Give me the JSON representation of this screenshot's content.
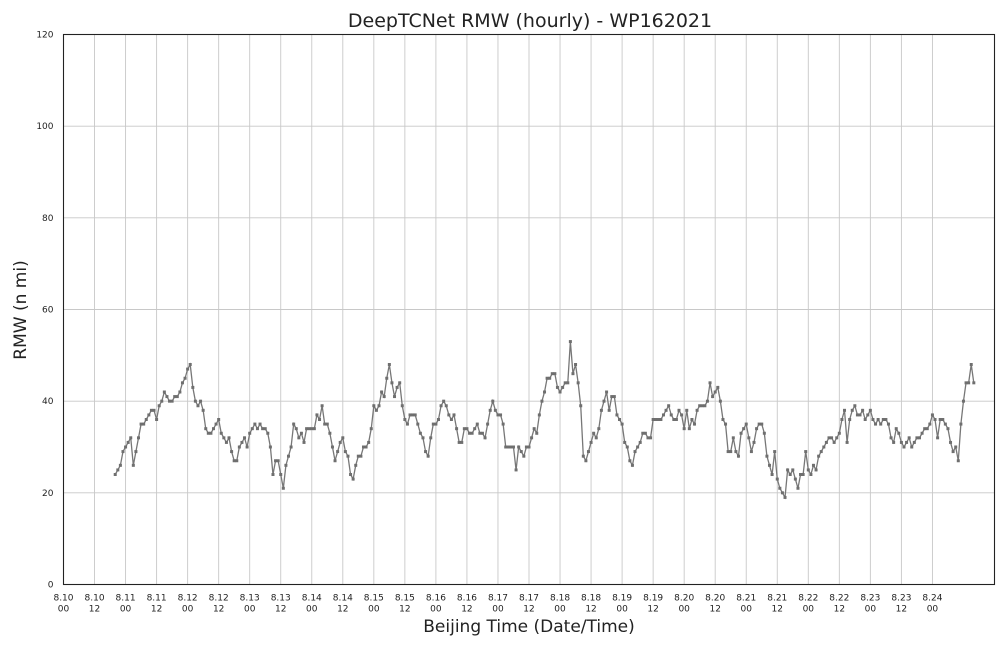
{
  "chart_data": {
    "type": "line",
    "title": "DeepTCNet RMW (hourly) - WP162021",
    "xlabel": "Beijing Time (Date/Time)",
    "ylabel": "RMW (n mi)",
    "ylim": [
      0,
      120
    ],
    "yticks": [
      0,
      20,
      40,
      60,
      80,
      100,
      120
    ],
    "grid": true,
    "xlim_hours": [
      0,
      360
    ],
    "xtick_labels": [
      [
        "8.10",
        "00"
      ],
      [
        "8.10",
        "12"
      ],
      [
        "8.11",
        "00"
      ],
      [
        "8.11",
        "12"
      ],
      [
        "8.12",
        "00"
      ],
      [
        "8.12",
        "12"
      ],
      [
        "8.13",
        "00"
      ],
      [
        "8.13",
        "12"
      ],
      [
        "8.14",
        "00"
      ],
      [
        "8.14",
        "12"
      ],
      [
        "8.15",
        "00"
      ],
      [
        "8.15",
        "12"
      ],
      [
        "8.16",
        "00"
      ],
      [
        "8.16",
        "12"
      ],
      [
        "8.17",
        "00"
      ],
      [
        "8.17",
        "12"
      ],
      [
        "8.18",
        "00"
      ],
      [
        "8.18",
        "12"
      ],
      [
        "8.19",
        "00"
      ],
      [
        "8.19",
        "12"
      ],
      [
        "8.20",
        "00"
      ],
      [
        "8.20",
        "12"
      ],
      [
        "8.21",
        "00"
      ],
      [
        "8.21",
        "12"
      ],
      [
        "8.22",
        "00"
      ],
      [
        "8.22",
        "12"
      ],
      [
        "8.23",
        "00"
      ],
      [
        "8.23",
        "12"
      ],
      [
        "8.24",
        "00"
      ]
    ],
    "x_start_hour": 20,
    "x_step_hour": 1,
    "values": [
      24,
      25,
      26,
      29,
      30,
      31,
      32,
      26,
      29,
      32,
      35,
      35,
      36,
      37,
      38,
      38,
      36,
      39,
      40,
      42,
      41,
      40,
      40,
      41,
      41,
      42,
      44,
      45,
      47,
      48,
      43,
      40,
      39,
      40,
      38,
      34,
      33,
      33,
      34,
      35,
      36,
      33,
      32,
      31,
      32,
      29,
      27,
      27,
      30,
      31,
      32,
      30,
      33,
      34,
      35,
      34,
      35,
      34,
      34,
      33,
      30,
      24,
      27,
      27,
      24,
      21,
      26,
      28,
      30,
      35,
      34,
      32,
      33,
      31,
      34,
      34,
      34,
      34,
      37,
      36,
      39,
      35,
      35,
      33,
      30,
      27,
      29,
      31,
      32,
      29,
      28,
      24,
      23,
      26,
      28,
      28,
      30,
      30,
      31,
      34,
      39,
      38,
      39,
      42,
      41,
      45,
      48,
      44,
      41,
      43,
      44,
      39,
      36,
      35,
      37,
      37,
      37,
      35,
      33,
      32,
      29,
      28,
      32,
      35,
      35,
      36,
      39,
      40,
      39,
      37,
      36,
      37,
      34,
      31,
      31,
      34,
      34,
      33,
      33,
      34,
      35,
      33,
      33,
      32,
      35,
      38,
      40,
      38,
      37,
      37,
      35,
      30,
      30,
      30,
      30,
      25,
      30,
      29,
      28,
      30,
      30,
      32,
      34,
      33,
      37,
      40,
      42,
      45,
      45,
      46,
      46,
      43,
      42,
      43,
      44,
      44,
      53,
      46,
      48,
      44,
      39,
      28,
      27,
      29,
      31,
      33,
      32,
      34,
      38,
      40,
      42,
      38,
      41,
      41,
      37,
      36,
      35,
      31,
      30,
      27,
      26,
      29,
      30,
      31,
      33,
      33,
      32,
      32,
      36,
      36,
      36,
      36,
      37,
      38,
      39,
      37,
      36,
      36,
      38,
      37,
      34,
      38,
      34,
      36,
      35,
      38,
      39,
      39,
      39,
      40,
      44,
      41,
      42,
      43,
      40,
      36,
      35,
      29,
      29,
      32,
      29,
      28,
      33,
      34,
      35,
      32,
      29,
      31,
      34,
      35,
      35,
      33,
      28,
      26,
      24,
      29,
      23,
      21,
      20,
      19,
      25,
      24,
      25,
      23,
      21,
      24,
      24,
      29,
      25,
      24,
      26,
      25,
      28,
      29,
      30,
      31,
      32,
      32,
      31,
      32,
      33,
      36,
      38,
      31,
      36,
      38,
      39,
      37,
      37,
      38,
      36,
      37,
      38,
      36,
      35,
      36,
      35,
      36,
      36,
      35,
      32,
      31,
      34,
      33,
      31,
      30,
      31,
      32,
      30,
      31,
      32,
      32,
      33,
      34,
      34,
      35,
      37,
      36,
      32,
      36,
      36,
      35,
      34,
      31,
      29,
      30,
      27,
      35,
      40,
      44,
      44,
      48,
      44
    ]
  }
}
